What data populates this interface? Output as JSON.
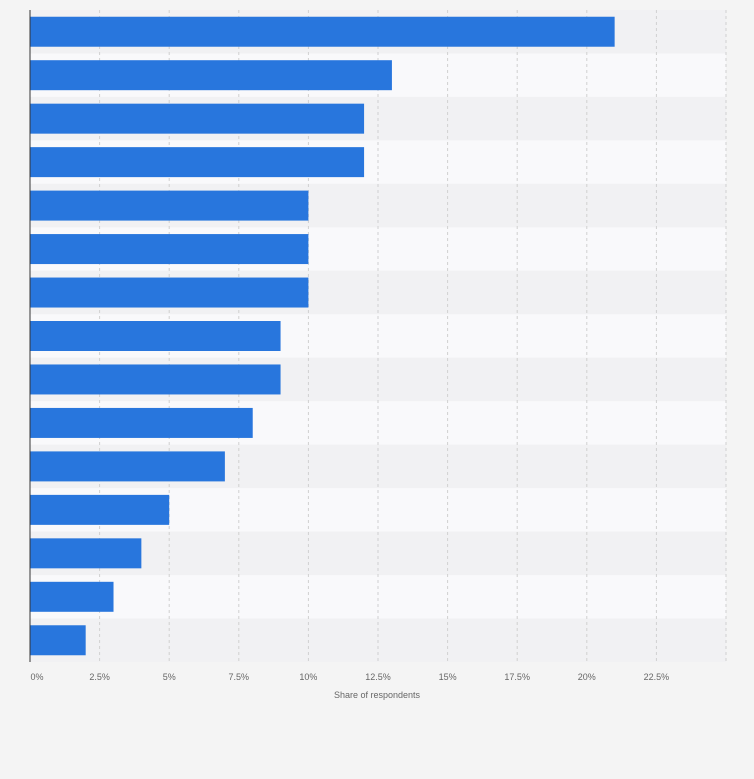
{
  "chart_data": {
    "type": "bar",
    "orientation": "horizontal",
    "title": "",
    "xlabel": "Share of respondents",
    "ylabel": "",
    "categories": [
      "",
      "",
      "",
      "",
      "",
      "",
      "",
      "",
      "",
      "",
      "",
      "",
      "",
      "",
      ""
    ],
    "values": [
      21,
      13,
      12,
      12,
      10,
      10,
      10,
      9,
      9,
      8,
      7,
      5,
      4,
      3,
      2
    ],
    "xlim": [
      0,
      25
    ],
    "ticks": [
      0,
      2.5,
      5,
      7.5,
      10,
      12.5,
      15,
      17.5,
      20,
      22.5
    ],
    "tick_labels": [
      "0%",
      "2.5%",
      "5%",
      "7.5%",
      "10%",
      "12.5%",
      "15%",
      "17.5%",
      "20%",
      "22.5%"
    ],
    "grid": true,
    "legend": "none",
    "colors": {
      "bar": "#2876dd",
      "background": "#f4f4f4",
      "band_light": "#f9f9fb",
      "band_dark": "#f1f1f3",
      "grid": "#d0d0d0",
      "axis": "#333333",
      "text": "#666666"
    }
  }
}
